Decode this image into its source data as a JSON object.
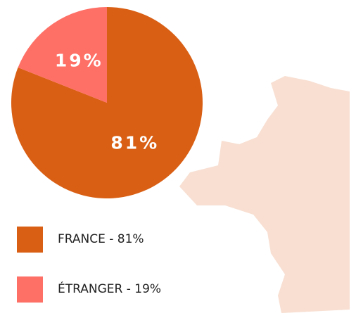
{
  "chart_data": {
    "type": "pie",
    "categories": [
      "FRANCE - 81%",
      "ÉTRANGER - 19%"
    ],
    "values": [
      81,
      19
    ],
    "value_labels": [
      "81%",
      "19%"
    ],
    "colors": [
      "#d95f14",
      "#fe6f66"
    ]
  }
}
